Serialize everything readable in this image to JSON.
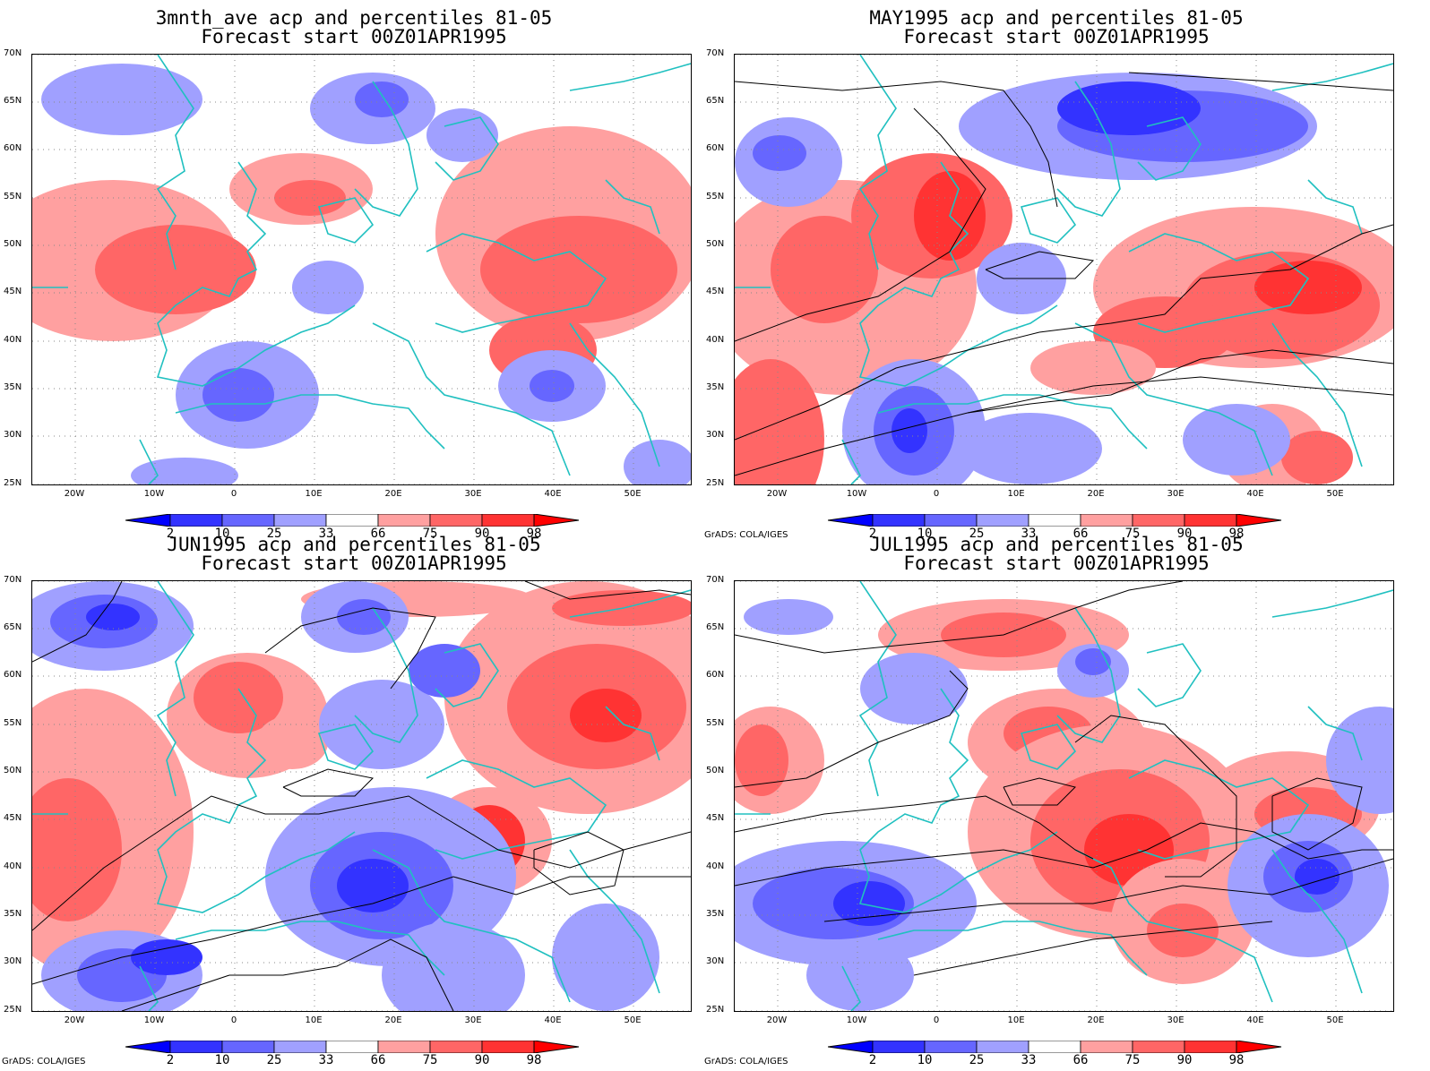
{
  "panels": [
    {
      "title_line1": "3mnth_ave acp and percentiles 81-05",
      "title_line2": "Forecast start 00Z01APR1995",
      "credit": ""
    },
    {
      "title_line1": "MAY1995 acp and percentiles 81-05",
      "title_line2": "Forecast start 00Z01APR1995",
      "credit": "GrADS: COLA/IGES"
    },
    {
      "title_line1": "JUN1995 acp and percentiles 81-05",
      "title_line2": "Forecast start 00Z01APR1995",
      "credit": "GrADS: COLA/IGES"
    },
    {
      "title_line1": "JUL1995 acp and percentiles 81-05",
      "title_line2": "Forecast start 00Z01APR1995",
      "credit": "GrADS: COLA/IGES"
    }
  ],
  "lat_labels": [
    "70N",
    "65N",
    "60N",
    "55N",
    "50N",
    "45N",
    "40N",
    "35N",
    "30N",
    "25N"
  ],
  "lon_labels": [
    "20W",
    "10W",
    "0",
    "10E",
    "20E",
    "30E",
    "40E",
    "50E"
  ],
  "colorbar": {
    "labels": [
      "2",
      "10",
      "25",
      "33",
      "66",
      "75",
      "90",
      "98"
    ],
    "colors": [
      "#0000ff",
      "#3333ff",
      "#6666ff",
      "#a0a0ff",
      "#ffffff",
      "#ffa0a0",
      "#ff6666",
      "#ff3333",
      "#ff0000"
    ]
  },
  "colors": {
    "coastline": "#20c0c0",
    "contour": "#000000",
    "grid": "#888888"
  }
}
